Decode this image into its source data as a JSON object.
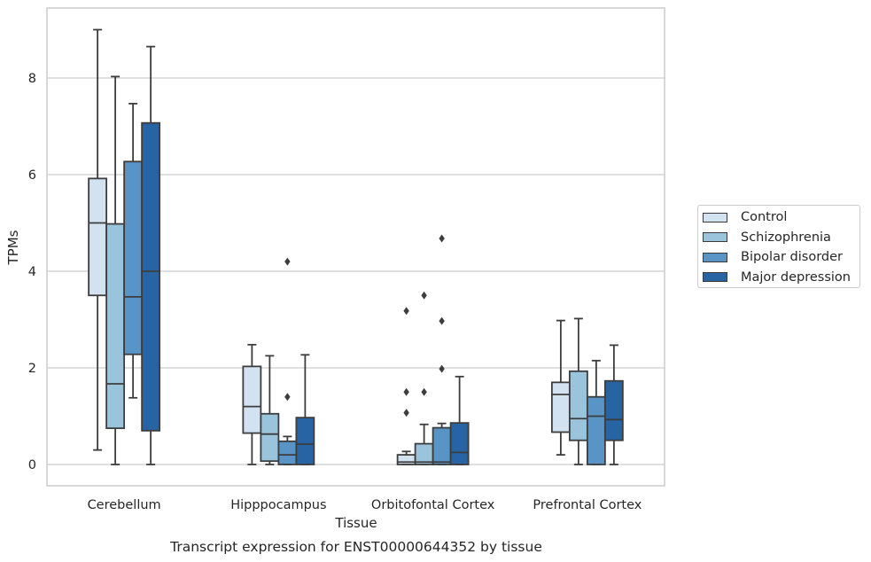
{
  "chart_data": {
    "type": "box",
    "title": "Transcript expression for ENST00000644352 by tissue",
    "xlabel": "Tissue",
    "ylabel": "TPMs",
    "ylim": [
      -0.45,
      9.6
    ],
    "yticks": [
      0,
      2,
      4,
      6,
      8
    ],
    "grid": "horizontal",
    "legend_position": "right-outside",
    "categories": [
      "Cerebellum",
      "Hipppocampus",
      "Orbitofontal Cortex",
      "Prefrontal Cortex"
    ],
    "series": [
      {
        "name": "Control",
        "color": "#d3e2f1",
        "boxes": [
          {
            "whislo": 0.3,
            "q1": 3.5,
            "med": 5.0,
            "q3": 5.92,
            "whishi": 9.0,
            "fliers": []
          },
          {
            "whislo": 0.0,
            "q1": 0.65,
            "med": 1.2,
            "q3": 2.03,
            "whishi": 2.48,
            "fliers": []
          },
          {
            "whislo": 0.0,
            "q1": 0.0,
            "med": 0.05,
            "q3": 0.2,
            "whishi": 0.27,
            "fliers": [
              3.18,
              1.5,
              1.07
            ]
          },
          {
            "whislo": 0.2,
            "q1": 0.67,
            "med": 1.45,
            "q3": 1.7,
            "whishi": 2.98,
            "fliers": []
          }
        ]
      },
      {
        "name": "Schizophrenia",
        "color": "#9ac3dc",
        "boxes": [
          {
            "whislo": 0.0,
            "q1": 0.75,
            "med": 1.67,
            "q3": 4.98,
            "whishi": 8.03,
            "fliers": []
          },
          {
            "whislo": 0.0,
            "q1": 0.07,
            "med": 0.63,
            "q3": 1.05,
            "whishi": 2.25,
            "fliers": []
          },
          {
            "whislo": 0.0,
            "q1": 0.0,
            "med": 0.05,
            "q3": 0.43,
            "whishi": 0.83,
            "fliers": [
              3.5,
              1.5
            ]
          },
          {
            "whislo": 0.0,
            "q1": 0.5,
            "med": 0.95,
            "q3": 1.93,
            "whishi": 3.02,
            "fliers": []
          }
        ]
      },
      {
        "name": "Bipolar disorder",
        "color": "#5895c6",
        "boxes": [
          {
            "whislo": 1.38,
            "q1": 2.28,
            "med": 3.47,
            "q3": 6.27,
            "whishi": 7.47,
            "fliers": []
          },
          {
            "whislo": 0.0,
            "q1": 0.0,
            "med": 0.2,
            "q3": 0.48,
            "whishi": 0.58,
            "fliers": [
              4.2,
              1.4
            ]
          },
          {
            "whislo": 0.0,
            "q1": 0.0,
            "med": 0.05,
            "q3": 0.76,
            "whishi": 0.85,
            "fliers": [
              4.68,
              2.97,
              1.98
            ]
          },
          {
            "whislo": 0.0,
            "q1": 0.0,
            "med": 1.0,
            "q3": 1.4,
            "whishi": 2.15,
            "fliers": []
          }
        ]
      },
      {
        "name": "Major depression",
        "color": "#2863a3",
        "boxes": [
          {
            "whislo": 0.0,
            "q1": 0.7,
            "med": 4.0,
            "q3": 7.07,
            "whishi": 8.65,
            "fliers": []
          },
          {
            "whislo": 0.0,
            "q1": 0.0,
            "med": 0.42,
            "q3": 0.97,
            "whishi": 2.27,
            "fliers": []
          },
          {
            "whislo": 0.0,
            "q1": 0.0,
            "med": 0.25,
            "q3": 0.86,
            "whishi": 1.82,
            "fliers": []
          },
          {
            "whislo": 0.0,
            "q1": 0.5,
            "med": 0.93,
            "q3": 1.73,
            "whishi": 2.47,
            "fliers": []
          }
        ]
      }
    ]
  }
}
